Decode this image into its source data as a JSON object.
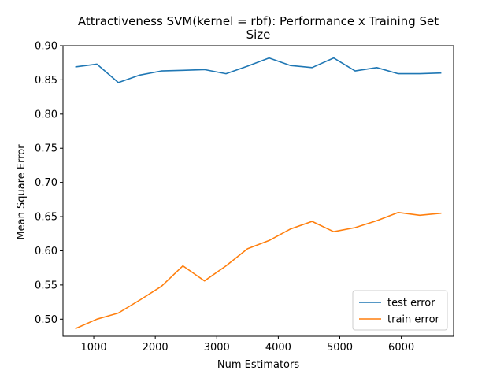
{
  "chart_data": {
    "type": "line",
    "title_line1": "Attractiveness SVM(kernel = rbf): Performance x Training Set",
    "title_line2": "Size",
    "xlabel": "Num Estimators",
    "ylabel": "Mean Square Error",
    "xlim": [
      500,
      6850
    ],
    "ylim": [
      0.475,
      0.9
    ],
    "xticks": [
      1000,
      2000,
      3000,
      4000,
      5000,
      6000
    ],
    "yticks": [
      0.5,
      0.55,
      0.6,
      0.65,
      0.7,
      0.75,
      0.8,
      0.85,
      0.9
    ],
    "xtick_labels": [
      "1000",
      "2000",
      "3000",
      "4000",
      "5000",
      "6000"
    ],
    "ytick_labels": [
      "0.50",
      "0.55",
      "0.60",
      "0.65",
      "0.70",
      "0.75",
      "0.80",
      "0.85",
      "0.90"
    ],
    "legend_position": "lower-right",
    "grid": false,
    "x": [
      700,
      1050,
      1400,
      1750,
      2100,
      2450,
      2800,
      3150,
      3500,
      3850,
      4200,
      4550,
      4900,
      5250,
      5600,
      5950,
      6300,
      6650
    ],
    "series": [
      {
        "name": "test error",
        "color": "#1f77b4",
        "values": [
          0.869,
          0.873,
          0.846,
          0.857,
          0.863,
          0.864,
          0.865,
          0.859,
          0.87,
          0.882,
          0.871,
          0.868,
          0.882,
          0.863,
          0.868,
          0.859,
          0.859,
          0.86
        ]
      },
      {
        "name": "train error",
        "color": "#ff7f0e",
        "values": [
          0.486,
          0.5,
          0.509,
          0.528,
          0.548,
          0.578,
          0.556,
          0.578,
          0.603,
          0.615,
          0.632,
          0.643,
          0.628,
          0.634,
          0.644,
          0.656,
          0.652,
          0.655
        ]
      }
    ]
  }
}
